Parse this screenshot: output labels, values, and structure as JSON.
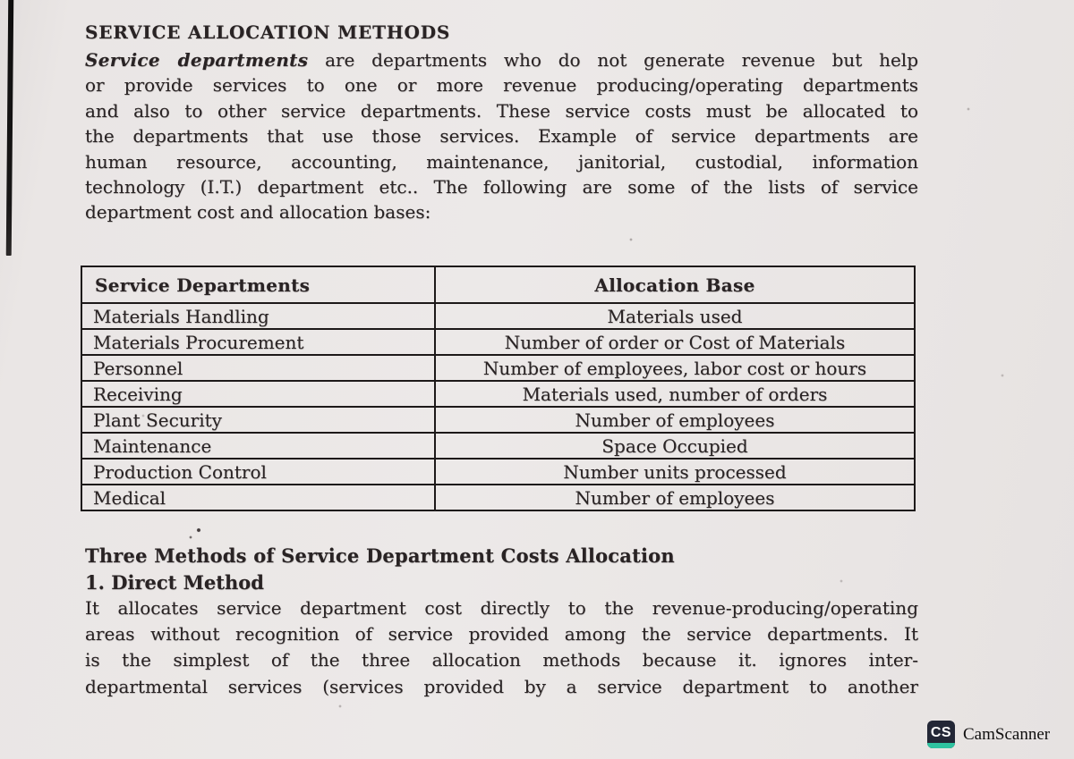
{
  "doc": {
    "heading": "SERVICE ALLOCATION METHODS",
    "intro": {
      "line1_lead": "Service departments",
      "line1_rest": " are departments who do not generate revenue but help",
      "lines": [
        "or provide services to one or more revenue producing/operating departments",
        "and also to other service departments. These service costs must be allocated to",
        "the departments that use those services. Example of service departments are",
        "human resource, accounting, maintenance, janitorial, custodial, information",
        "technology (I.T.) department etc.. The following are some of the lists of service",
        "department cost and allocation bases:"
      ]
    },
    "table": {
      "headers": [
        "Service Departments",
        "Allocation Base"
      ],
      "rows": [
        [
          "Materials Handling",
          "Materials used"
        ],
        [
          "Materials Procurement",
          "Number of order or Cost of Materials"
        ],
        [
          "Personnel",
          "Number of employees, labor cost or hours"
        ],
        [
          "Receiving",
          "Materials used, number of orders"
        ],
        [
          "Plant Security",
          "Number of employees"
        ],
        [
          "Maintenance",
          "Space Occupied"
        ],
        [
          "Production Control",
          "Number units processed"
        ],
        [
          "Medical",
          "Number of employees"
        ]
      ]
    },
    "section2": {
      "heading": "Three Methods of Service Department Costs Allocation",
      "subheading": "1. Direct Method",
      "lines": [
        "It allocates service department cost directly to the revenue-producing/operating",
        "areas without recognition of service provided among the service departments. It",
        "is the simplest of the three allocation methods because it. ignores inter-",
        "departmental services (services provided by a service department to another"
      ]
    },
    "watermark": {
      "icon_text": "CS",
      "label": "CamScanner",
      "icon_bg": "#232736",
      "icon_accent": "#2fc3a0"
    }
  }
}
